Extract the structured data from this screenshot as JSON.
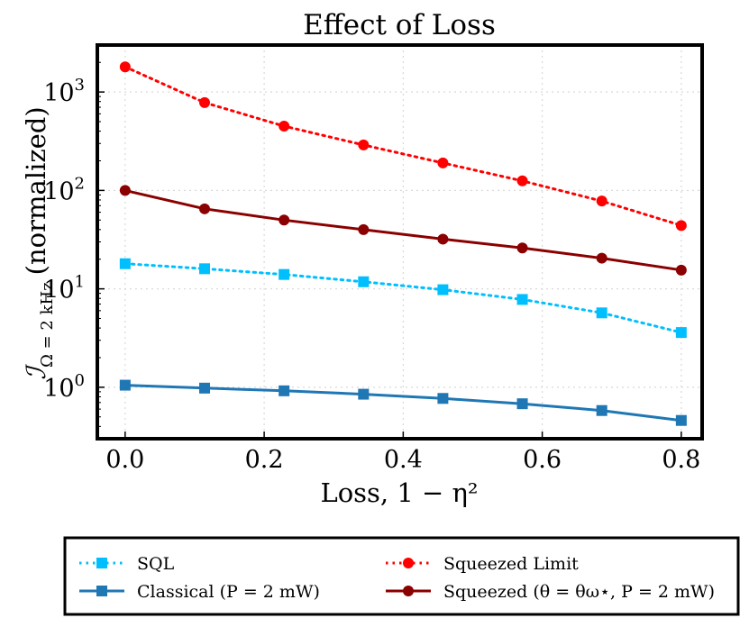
{
  "chart_data": {
    "type": "line",
    "title": "Effect of Loss",
    "xlabel": "Loss, 1 − η²",
    "ylabel": "ℐΩ = 2 kHz (normalized)",
    "ylabel_main": "ℐ",
    "ylabel_sub": "Ω = 2 kHz",
    "ylabel_suffix": "(normalized)",
    "xscale": "linear",
    "yscale": "log",
    "xlim": [
      -0.04,
      0.83
    ],
    "ylim": [
      0.3,
      3000
    ],
    "grid": true,
    "legend_position": "bottom-outside",
    "x": [
      0.0,
      0.1143,
      0.2286,
      0.3429,
      0.4571,
      0.5714,
      0.6857,
      0.8
    ],
    "xticks": [
      0.0,
      0.2,
      0.4,
      0.6,
      0.8
    ],
    "xtick_labels": [
      "0.0",
      "0.2",
      "0.4",
      "0.6",
      "0.8"
    ],
    "yticks": [
      1,
      10,
      100,
      1000
    ],
    "ytick_base": "10",
    "ytick_exponents": [
      "0",
      "1",
      "2",
      "3"
    ],
    "series": [
      {
        "name": "SQL",
        "color": "#00bfff",
        "linestyle": "dotted",
        "marker": "square",
        "values": [
          18,
          16,
          14,
          11.8,
          9.8,
          7.8,
          5.7,
          3.6
        ]
      },
      {
        "name": "Classical (P = 2 mW)",
        "color": "#1f77b4",
        "linestyle": "solid",
        "marker": "square",
        "values": [
          1.05,
          0.98,
          0.92,
          0.85,
          0.77,
          0.68,
          0.58,
          0.46
        ]
      },
      {
        "name": "Squeezed Limit",
        "color": "#ff0000",
        "linestyle": "dotted",
        "marker": "circle",
        "values": [
          1800,
          780,
          450,
          290,
          190,
          125,
          78,
          44
        ]
      },
      {
        "name": "Squeezed (θ = θω⋆, P = 2 mW)",
        "color": "#8b0000",
        "linestyle": "solid",
        "marker": "circle",
        "values": [
          100,
          65,
          50,
          40,
          32,
          26,
          20.5,
          15.5
        ]
      }
    ]
  }
}
